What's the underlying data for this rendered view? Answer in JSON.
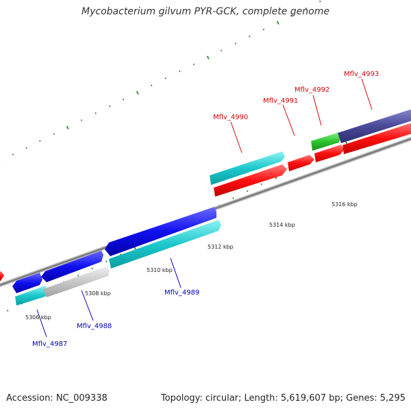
{
  "title": "Mycobacterium gilvum PYR-GCK, complete genome",
  "footer": {
    "accession": "Accession: NC_009338",
    "summary": "Topology: circular; Length: 5,619,607 bp; Genes: 5,295"
  },
  "colors": {
    "forward_gene_label": "#dd0000",
    "reverse_gene_label": "#0000bb",
    "backbone": "#808080",
    "tick": "#1a7a1a"
  },
  "scale_labels": [
    "5306 kbp",
    "5308 kbp",
    "5310 kbp",
    "5312 kbp",
    "5314 kbp",
    "5316 kbp"
  ],
  "genes": [
    {
      "name": "Mflv_4987",
      "strand": "reverse",
      "label_color": "#0000bb"
    },
    {
      "name": "Mflv_4988",
      "strand": "reverse",
      "label_color": "#0000bb"
    },
    {
      "name": "Mflv_4989",
      "strand": "reverse",
      "label_color": "#0000bb"
    },
    {
      "name": "Mflv_4990",
      "strand": "forward",
      "label_color": "#dd0000"
    },
    {
      "name": "Mflv_4991",
      "strand": "forward",
      "label_color": "#dd0000"
    },
    {
      "name": "Mflv_4992",
      "strand": "forward",
      "label_color": "#dd0000"
    },
    {
      "name": "Mflv_4993",
      "strand": "forward",
      "label_color": "#dd0000"
    }
  ]
}
